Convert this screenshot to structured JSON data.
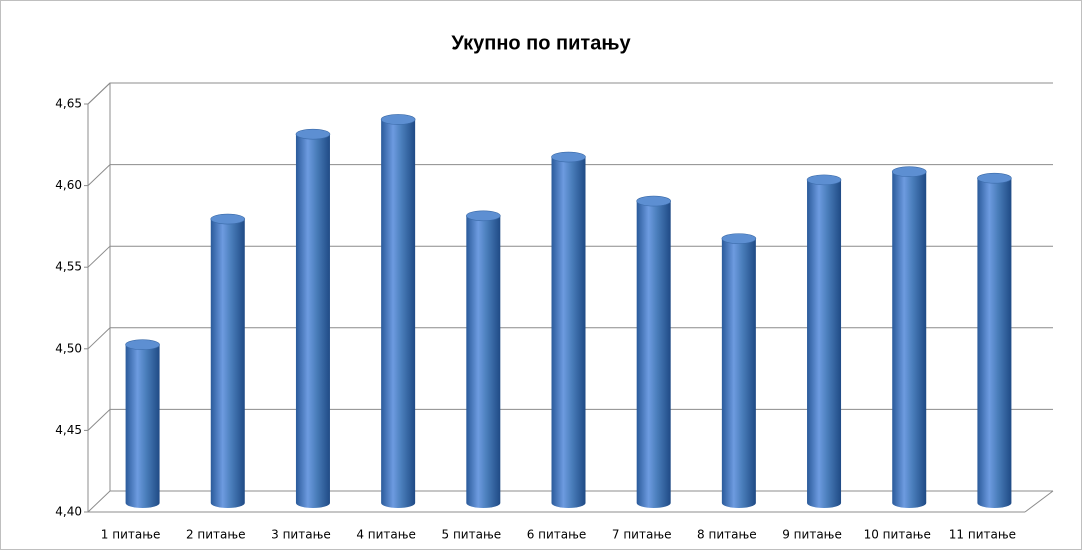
{
  "chart_data": {
    "type": "bar",
    "title": "Укупно по питању",
    "categories": [
      "1 питање",
      "2 питање",
      "3 питање",
      "4 питање",
      "5 питање",
      "6 питање",
      "7 питање",
      "8 питање",
      "9 питање",
      "10 питање",
      "11 питање"
    ],
    "values": [
      4.497,
      4.574,
      4.626,
      4.635,
      4.576,
      4.612,
      4.585,
      4.562,
      4.598,
      4.603,
      4.599
    ],
    "color": "#4a7ebb",
    "ylim": [
      4.4,
      4.65
    ],
    "yticks": [
      {
        "value": 4.4,
        "label": "4,40"
      },
      {
        "value": 4.45,
        "label": "4,45"
      },
      {
        "value": 4.5,
        "label": "4,50"
      },
      {
        "value": 4.55,
        "label": "4,55"
      },
      {
        "value": 4.6,
        "label": "4,60"
      },
      {
        "value": 4.65,
        "label": "4,65"
      }
    ],
    "grid": true
  }
}
